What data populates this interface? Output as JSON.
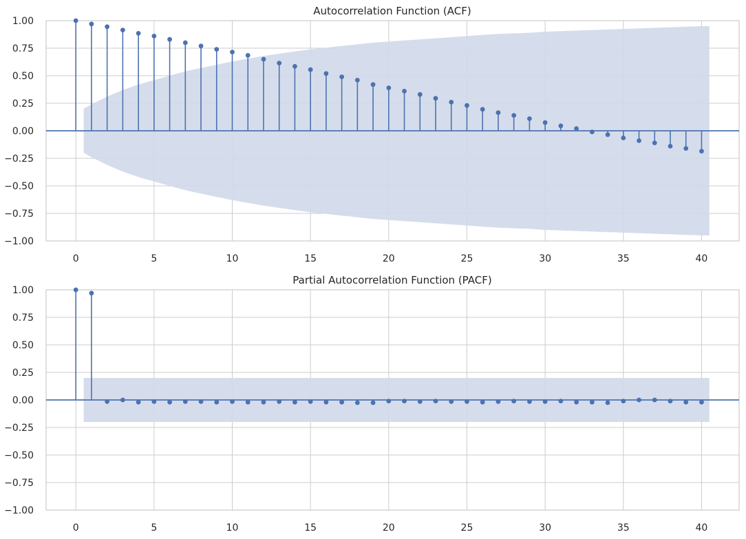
{
  "chart_data": [
    {
      "type": "stem",
      "title": "Autocorrelation Function (ACF)",
      "xlabel": "",
      "ylabel": "",
      "xlim": [
        -1.9,
        42.4
      ],
      "ylim": [
        -1.0,
        1.0
      ],
      "xticks": [
        0,
        5,
        10,
        15,
        20,
        25,
        30,
        35,
        40
      ],
      "xtick_labels": [
        "0",
        "5",
        "10",
        "15",
        "20",
        "25",
        "30",
        "35",
        "40"
      ],
      "yticks": [
        1.0,
        0.75,
        0.5,
        0.25,
        0.0,
        -0.25,
        -0.5,
        -0.75,
        -1.0
      ],
      "ytick_labels": [
        "1.00",
        "0.75",
        "0.50",
        "0.25",
        "0.00",
        "−0.25",
        "−0.50",
        "−0.75",
        "−1.00"
      ],
      "grid": true,
      "legend": "none",
      "x": [
        0,
        1,
        2,
        3,
        4,
        5,
        6,
        7,
        8,
        9,
        10,
        11,
        12,
        13,
        14,
        15,
        16,
        17,
        18,
        19,
        20,
        21,
        22,
        23,
        24,
        25,
        26,
        27,
        28,
        29,
        30,
        31,
        32,
        33,
        34,
        35,
        36,
        37,
        38,
        39,
        40
      ],
      "values": [
        1.0,
        0.97,
        0.945,
        0.915,
        0.885,
        0.86,
        0.83,
        0.8,
        0.77,
        0.74,
        0.715,
        0.685,
        0.65,
        0.615,
        0.585,
        0.555,
        0.52,
        0.49,
        0.46,
        0.42,
        0.39,
        0.36,
        0.33,
        0.295,
        0.26,
        0.23,
        0.195,
        0.165,
        0.14,
        0.11,
        0.075,
        0.045,
        0.02,
        -0.01,
        -0.035,
        -0.065,
        -0.09,
        -0.11,
        -0.14,
        -0.16,
        -0.185
      ],
      "confidence_band": {
        "x": [
          0.5,
          1,
          2,
          3,
          4,
          5,
          6,
          7,
          8,
          9,
          10,
          11,
          12,
          13,
          14,
          15,
          16,
          17,
          18,
          19,
          20,
          21,
          22,
          23,
          24,
          25,
          26,
          27,
          28,
          29,
          30,
          31,
          32,
          33,
          34,
          35,
          36,
          37,
          38,
          39,
          40,
          40.5
        ],
        "upper": [
          0.2,
          0.24,
          0.31,
          0.37,
          0.42,
          0.46,
          0.5,
          0.54,
          0.57,
          0.6,
          0.63,
          0.655,
          0.68,
          0.7,
          0.72,
          0.74,
          0.755,
          0.77,
          0.785,
          0.8,
          0.81,
          0.82,
          0.83,
          0.84,
          0.85,
          0.86,
          0.87,
          0.88,
          0.885,
          0.89,
          0.9,
          0.905,
          0.91,
          0.915,
          0.92,
          0.925,
          0.93,
          0.935,
          0.94,
          0.945,
          0.95,
          0.95
        ]
      },
      "colors": {
        "stem": "#4c72b0",
        "band": "#d1daea",
        "zero_line": "#4c72b0",
        "grid": "#cccccc"
      }
    },
    {
      "type": "stem",
      "title": "Partial Autocorrelation Function (PACF)",
      "xlabel": "",
      "ylabel": "",
      "xlim": [
        -1.9,
        42.4
      ],
      "ylim": [
        -1.0,
        1.0
      ],
      "xticks": [
        0,
        5,
        10,
        15,
        20,
        25,
        30,
        35,
        40
      ],
      "xtick_labels": [
        "0",
        "5",
        "10",
        "15",
        "20",
        "25",
        "30",
        "35",
        "40"
      ],
      "yticks": [
        1.0,
        0.75,
        0.5,
        0.25,
        0.0,
        -0.25,
        -0.5,
        -0.75,
        -1.0
      ],
      "ytick_labels": [
        "1.00",
        "0.75",
        "0.50",
        "0.25",
        "0.00",
        "−0.25",
        "−0.50",
        "−0.75",
        "−1.00"
      ],
      "grid": true,
      "legend": "none",
      "x": [
        0,
        1,
        2,
        3,
        4,
        5,
        6,
        7,
        8,
        9,
        10,
        11,
        12,
        13,
        14,
        15,
        16,
        17,
        18,
        19,
        20,
        21,
        22,
        23,
        24,
        25,
        26,
        27,
        28,
        29,
        30,
        31,
        32,
        33,
        34,
        35,
        36,
        37,
        38,
        39,
        40
      ],
      "values": [
        1.0,
        0.97,
        -0.015,
        0.0,
        -0.02,
        -0.015,
        -0.02,
        -0.015,
        -0.015,
        -0.02,
        -0.015,
        -0.02,
        -0.02,
        -0.015,
        -0.02,
        -0.015,
        -0.02,
        -0.02,
        -0.025,
        -0.025,
        -0.01,
        -0.01,
        -0.015,
        -0.01,
        -0.015,
        -0.015,
        -0.02,
        -0.015,
        -0.01,
        -0.015,
        -0.015,
        -0.01,
        -0.02,
        -0.02,
        -0.025,
        -0.01,
        0.0,
        0.0,
        -0.01,
        -0.02,
        -0.02
      ],
      "confidence_band": {
        "x": [
          0.5,
          40.5
        ],
        "upper": [
          0.2,
          0.2
        ]
      },
      "colors": {
        "stem": "#4c72b0",
        "band": "#d1daea",
        "zero_line": "#4c72b0",
        "grid": "#cccccc"
      }
    }
  ]
}
